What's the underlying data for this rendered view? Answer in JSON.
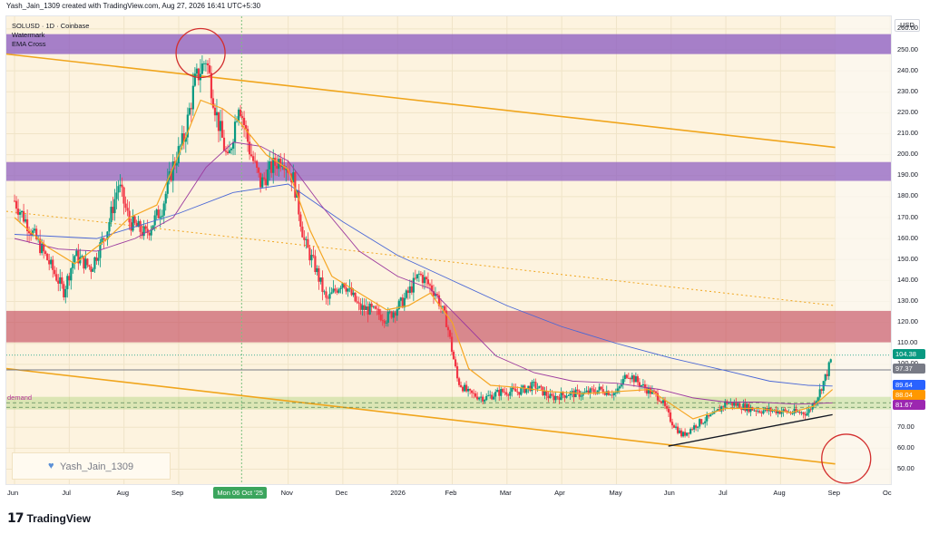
{
  "header": {
    "caption": "Yash_Jain_1309 created with TradingView.com, Aug 27, 2026 16:41 UTC+5:30"
  },
  "legend": {
    "symbol": "SOLUSD · 1D · Coinbase",
    "line2": "Watermark",
    "line3": "EMA Cross"
  },
  "watermark": {
    "text": "Yash_Jain_1309",
    "icon": "heart-icon"
  },
  "demand_label": "demand",
  "footer": {
    "logo_text": "TradingView",
    "logo_mark": "17"
  },
  "price_axis": {
    "currency": "USD",
    "ticks": [
      {
        "label": "260.00",
        "value": 260
      },
      {
        "label": "250.00",
        "value": 250
      },
      {
        "label": "240.00",
        "value": 240
      },
      {
        "label": "230.00",
        "value": 230
      },
      {
        "label": "220.00",
        "value": 220
      },
      {
        "label": "210.00",
        "value": 210
      },
      {
        "label": "200.00",
        "value": 200
      },
      {
        "label": "190.00",
        "value": 190
      },
      {
        "label": "180.00",
        "value": 180
      },
      {
        "label": "170.00",
        "value": 170
      },
      {
        "label": "160.00",
        "value": 160
      },
      {
        "label": "150.00",
        "value": 150
      },
      {
        "label": "140.00",
        "value": 140
      },
      {
        "label": "130.00",
        "value": 130
      },
      {
        "label": "120.00",
        "value": 120
      },
      {
        "label": "110.00",
        "value": 110
      },
      {
        "label": "100.00",
        "value": 100
      },
      {
        "label": "70.00",
        "value": 70
      },
      {
        "label": "60.00",
        "value": 60
      },
      {
        "label": "50.00",
        "value": 50
      }
    ],
    "badges": [
      {
        "label": "104.38",
        "value": 104.38,
        "color": "#089981"
      },
      {
        "label": "97.37",
        "value": 97.37,
        "color": "#787b86"
      },
      {
        "label": "89.64",
        "value": 89.64,
        "color": "#2962ff"
      },
      {
        "label": "88.04",
        "value": 88.04,
        "color": "#ff9800"
      },
      {
        "label": "81.67",
        "value": 81.67,
        "color": "#9c27b0"
      }
    ]
  },
  "time_axis": {
    "ticks": [
      {
        "label": "Jun",
        "month": 0
      },
      {
        "label": "Jul",
        "month": 1
      },
      {
        "label": "Aug",
        "month": 2
      },
      {
        "label": "Sep",
        "month": 3
      },
      {
        "label": "Nov",
        "month": 5
      },
      {
        "label": "Dec",
        "month": 6
      },
      {
        "label": "2026",
        "month": 7
      },
      {
        "label": "Feb",
        "month": 8
      },
      {
        "label": "Mar",
        "month": 9
      },
      {
        "label": "Apr",
        "month": 10
      },
      {
        "label": "May",
        "month": 11
      },
      {
        "label": "Jun",
        "month": 12
      },
      {
        "label": "Jul",
        "month": 13
      },
      {
        "label": "Aug",
        "month": 14
      },
      {
        "label": "Sep",
        "month": 15
      },
      {
        "label": "Oc",
        "month": 16
      }
    ],
    "hover_label": "Mon 06 Oct '25",
    "hover_month": 4.15
  },
  "chart_data": {
    "type": "candlestick",
    "symbol": "SOLUSD",
    "timeframe": "1D",
    "exchange": "Coinbase",
    "ylim": [
      42,
      266
    ],
    "xlim_months": [
      -0.15,
      16.05
    ],
    "last_price": 104.38,
    "price_path": [
      [
        0.0,
        178
      ],
      [
        0.3,
        164
      ],
      [
        0.6,
        150
      ],
      [
        0.9,
        135
      ],
      [
        1.1,
        152
      ],
      [
        1.4,
        146
      ],
      [
        1.7,
        165
      ],
      [
        1.9,
        186
      ],
      [
        2.1,
        168
      ],
      [
        2.4,
        162
      ],
      [
        2.7,
        175
      ],
      [
        2.9,
        195
      ],
      [
        3.1,
        208
      ],
      [
        3.3,
        235
      ],
      [
        3.5,
        246
      ],
      [
        3.7,
        218
      ],
      [
        3.9,
        196
      ],
      [
        4.1,
        226
      ],
      [
        4.3,
        202
      ],
      [
        4.5,
        186
      ],
      [
        4.7,
        194
      ],
      [
        4.9,
        199
      ],
      [
        5.1,
        188
      ],
      [
        5.3,
        158
      ],
      [
        5.5,
        146
      ],
      [
        5.7,
        130
      ],
      [
        6.0,
        140
      ],
      [
        6.3,
        127
      ],
      [
        6.5,
        126
      ],
      [
        6.8,
        122
      ],
      [
        7.1,
        130
      ],
      [
        7.4,
        143
      ],
      [
        7.7,
        134
      ],
      [
        7.9,
        120
      ],
      [
        8.1,
        92
      ],
      [
        8.3,
        86
      ],
      [
        8.6,
        84
      ],
      [
        8.9,
        87
      ],
      [
        9.2,
        87
      ],
      [
        9.5,
        90
      ],
      [
        9.8,
        84
      ],
      [
        10.1,
        86
      ],
      [
        10.4,
        86
      ],
      [
        10.7,
        88
      ],
      [
        11.0,
        86
      ],
      [
        11.2,
        96
      ],
      [
        11.5,
        89
      ],
      [
        11.8,
        84
      ],
      [
        12.0,
        73
      ],
      [
        12.2,
        66
      ],
      [
        12.5,
        72
      ],
      [
        12.8,
        76
      ],
      [
        13.0,
        82
      ],
      [
        13.3,
        80
      ],
      [
        13.6,
        78
      ],
      [
        13.9,
        78
      ],
      [
        14.2,
        77
      ],
      [
        14.5,
        77
      ],
      [
        14.7,
        86
      ],
      [
        14.85,
        96
      ],
      [
        14.95,
        104.4
      ]
    ],
    "ema_fast": [
      [
        0.0,
        170
      ],
      [
        0.6,
        156
      ],
      [
        1.1,
        148
      ],
      [
        1.7,
        160
      ],
      [
        2.1,
        170
      ],
      [
        2.6,
        176
      ],
      [
        3.0,
        200
      ],
      [
        3.4,
        226
      ],
      [
        3.8,
        222
      ],
      [
        4.1,
        216
      ],
      [
        4.6,
        200
      ],
      [
        5.0,
        193
      ],
      [
        5.4,
        164
      ],
      [
        5.8,
        142
      ],
      [
        6.3,
        134
      ],
      [
        6.8,
        126
      ],
      [
        7.2,
        128
      ],
      [
        7.6,
        134
      ],
      [
        8.0,
        120
      ],
      [
        8.3,
        98
      ],
      [
        8.7,
        90
      ],
      [
        9.2,
        89
      ],
      [
        9.8,
        87
      ],
      [
        10.4,
        86
      ],
      [
        11.0,
        87
      ],
      [
        11.6,
        88
      ],
      [
        12.0,
        81
      ],
      [
        12.4,
        74
      ],
      [
        13.0,
        79
      ],
      [
        13.6,
        79
      ],
      [
        14.2,
        77
      ],
      [
        14.6,
        80
      ],
      [
        14.95,
        88.04
      ]
    ],
    "ema_slow": [
      [
        0.0,
        160
      ],
      [
        0.8,
        155
      ],
      [
        1.5,
        154
      ],
      [
        2.2,
        160
      ],
      [
        2.9,
        170
      ],
      [
        3.5,
        194
      ],
      [
        4.0,
        206
      ],
      [
        4.5,
        204
      ],
      [
        5.0,
        197
      ],
      [
        5.6,
        176
      ],
      [
        6.3,
        154
      ],
      [
        7.0,
        142
      ],
      [
        7.6,
        136
      ],
      [
        8.2,
        120
      ],
      [
        8.8,
        104
      ],
      [
        9.5,
        96
      ],
      [
        10.2,
        92
      ],
      [
        11.0,
        91
      ],
      [
        11.8,
        88
      ],
      [
        12.4,
        84
      ],
      [
        13.0,
        82
      ],
      [
        13.6,
        82
      ],
      [
        14.3,
        81
      ],
      [
        14.95,
        81.67
      ]
    ],
    "ema_long": [
      [
        0.0,
        162
      ],
      [
        1.5,
        160
      ],
      [
        3.0,
        172
      ],
      [
        4.0,
        182
      ],
      [
        5.0,
        186
      ],
      [
        6.0,
        168
      ],
      [
        7.0,
        152
      ],
      [
        8.0,
        140
      ],
      [
        9.0,
        128
      ],
      [
        10.0,
        118
      ],
      [
        11.0,
        110
      ],
      [
        12.0,
        103
      ],
      [
        13.0,
        97
      ],
      [
        13.8,
        92
      ],
      [
        14.5,
        90
      ],
      [
        14.95,
        89.64
      ]
    ],
    "zones": [
      {
        "name": "supply-zone-250",
        "from": 248,
        "to": 257.5,
        "color": "#9061c2",
        "opacity": 0.8
      },
      {
        "name": "supply-zone-190",
        "from": 187.5,
        "to": 196.5,
        "color": "#9061c2",
        "opacity": 0.75
      },
      {
        "name": "supply-zone-118",
        "from": 110.5,
        "to": 125.5,
        "color": "#c2455b",
        "opacity": 0.62
      },
      {
        "name": "demand-zone",
        "from": 78.5,
        "to": 84.5,
        "color": "#9ccc65",
        "opacity": 0.35
      }
    ],
    "channel_upper": [
      [
        -0.15,
        248
      ],
      [
        15.0,
        203.5
      ]
    ],
    "channel_lower": [
      [
        -0.15,
        98
      ],
      [
        15.0,
        52.5
      ]
    ],
    "channel_mid": [
      [
        -0.15,
        173
      ],
      [
        15.0,
        128
      ]
    ],
    "trendline": [
      [
        11.95,
        61
      ],
      [
        14.95,
        76
      ]
    ],
    "resistance_level": 97.37,
    "dashed_levels": [
      81.67,
      79.5
    ],
    "circles": [
      {
        "name": "top-circle",
        "month": 3.4,
        "price": 248.5
      },
      {
        "name": "target-circle",
        "month": 15.2,
        "price": 55
      }
    ]
  }
}
